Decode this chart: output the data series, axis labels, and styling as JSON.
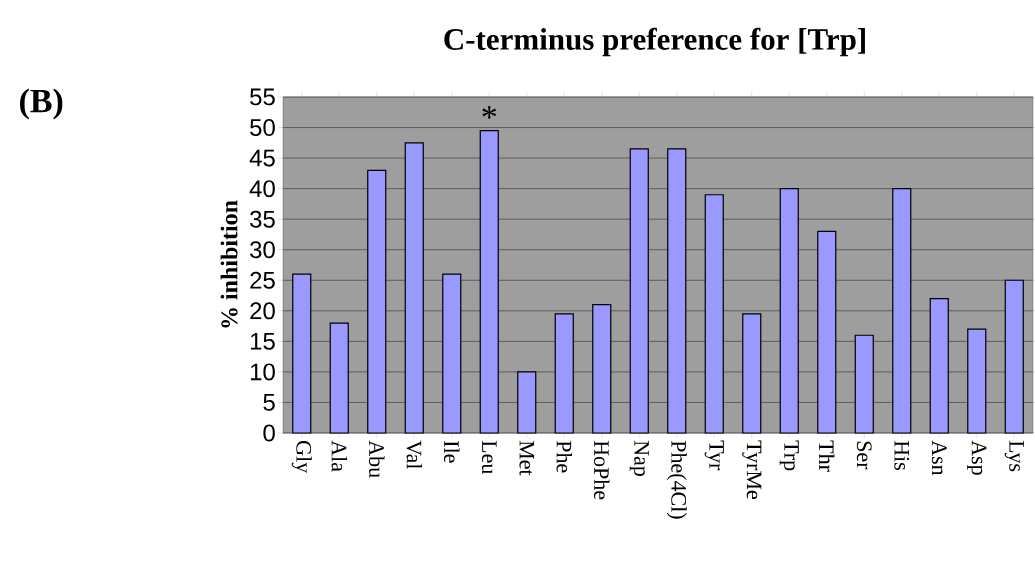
{
  "chart_data": {
    "type": "bar",
    "title": "C-terminus preference for [Trp]",
    "ylabel": "% inhibition",
    "categories": [
      "Gly",
      "Ala",
      "Abu",
      "Val",
      "Ile",
      "Leu",
      "Met",
      "Phe",
      "HoPhe",
      "Nap",
      "Phe(4Cl)",
      "Tyr",
      "TyrMe",
      "Trp",
      "Thr",
      "Ser",
      "His",
      "Asn",
      "Asp",
      "Lys"
    ],
    "values": [
      26,
      18,
      43,
      47.5,
      26,
      49.5,
      10,
      19.5,
      21,
      46.5,
      46.5,
      39,
      19.5,
      40,
      33,
      16,
      40,
      22,
      17,
      25
    ],
    "color": "#9999ff",
    "ylim": [
      0,
      55
    ],
    "yticks": [
      0,
      5,
      10,
      15,
      20,
      25,
      30,
      35,
      40,
      45,
      50,
      55
    ],
    "grid": "y",
    "annotations": [
      "(B)",
      {
        "text": "*",
        "x": "Leu",
        "y": 49.5
      }
    ]
  }
}
